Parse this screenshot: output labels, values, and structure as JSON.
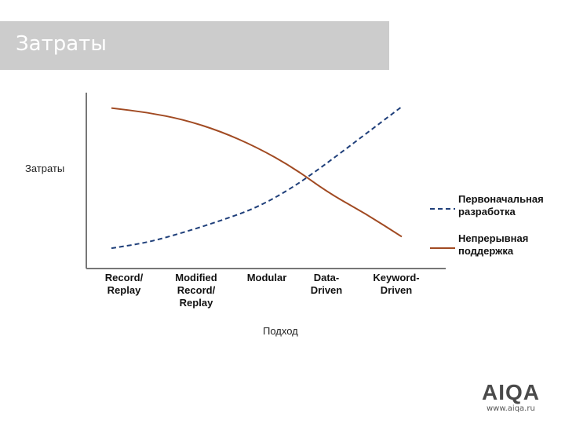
{
  "slide": {
    "title": "Затраты"
  },
  "brand": {
    "logo_text": "AIQA",
    "url": "www.aiqa.ru",
    "accent": "#b02a2a"
  },
  "chart_data": {
    "type": "line",
    "ylabel": "Затраты",
    "xlabel": "Подход",
    "categories": [
      [
        "Record/",
        "Replay"
      ],
      [
        "Modified",
        "Record/",
        "Replay"
      ],
      [
        "Modular"
      ],
      [
        "Data-",
        "Driven"
      ],
      [
        "Keyword-",
        "Driven"
      ]
    ],
    "ylim": [
      0,
      100
    ],
    "grid": false,
    "legend_position": "right",
    "series": [
      {
        "name": [
          "Первоначальная",
          "разработка"
        ],
        "style": "dashed",
        "color": "#1f3f7a",
        "x": [
          0,
          0.5,
          1,
          1.5,
          2,
          2.5,
          3,
          3.5,
          4
        ],
        "values": [
          1,
          5,
          12,
          20,
          29,
          43,
          61,
          80,
          99
        ]
      },
      {
        "name": [
          "Непрерывная",
          "поддержка"
        ],
        "style": "solid",
        "color": "#a14a22",
        "x": [
          0,
          0.5,
          1,
          1.5,
          2,
          2.5,
          3,
          3.5,
          4
        ],
        "values": [
          98,
          95,
          90,
          82,
          71,
          57,
          39,
          25,
          9
        ]
      }
    ]
  }
}
